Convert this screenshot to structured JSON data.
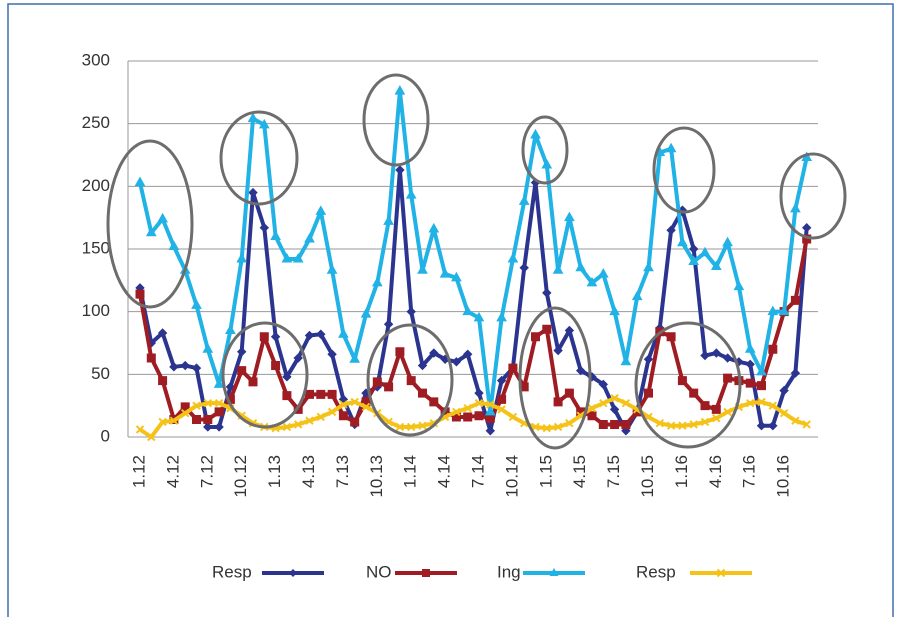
{
  "chart_data": {
    "type": "line",
    "categories": [
      "1.12",
      null,
      null,
      "4.12",
      null,
      null,
      "7.12",
      null,
      null,
      "10.12",
      null,
      null,
      "1.13",
      null,
      null,
      "4.13",
      null,
      null,
      "7.13",
      null,
      null,
      "10.13",
      null,
      null,
      "1.14",
      null,
      null,
      "4.14",
      null,
      null,
      "7.14",
      null,
      null,
      "10.14",
      null,
      null,
      "1.15",
      null,
      null,
      "4.15",
      null,
      null,
      "7.15",
      null,
      null,
      "10.15",
      null,
      null,
      "1.16",
      null,
      null,
      "4.16",
      null,
      null,
      "7.16",
      null,
      null,
      "10.16",
      null,
      null
    ],
    "series": [
      {
        "name": "Resp",
        "color": "#2b3590",
        "marker": "diamond",
        "values": [
          119,
          75,
          83,
          56,
          57,
          55,
          8,
          8,
          40,
          68,
          195,
          167,
          80,
          48,
          63,
          81,
          82,
          66,
          30,
          10,
          35,
          40,
          90,
          213,
          100,
          57,
          67,
          62,
          60,
          66,
          35,
          5,
          45,
          55,
          135,
          203,
          115,
          69,
          85,
          53,
          48,
          42,
          22,
          5,
          20,
          62,
          87,
          165,
          181,
          150,
          65,
          67,
          63,
          60,
          58,
          9,
          9,
          37,
          51,
          167
        ]
      },
      {
        "name": "NO",
        "color": "#9e1c22",
        "marker": "square",
        "values": [
          114,
          63,
          45,
          14,
          24,
          14,
          14,
          20,
          30,
          53,
          44,
          80,
          57,
          33,
          22,
          34,
          34,
          34,
          17,
          12,
          28,
          44,
          40,
          68,
          45,
          35,
          28,
          20,
          16,
          16,
          17,
          15,
          30,
          55,
          40,
          80,
          86,
          28,
          35,
          20,
          17,
          10,
          10,
          10,
          20,
          35,
          84,
          80,
          45,
          35,
          25,
          22,
          47,
          45,
          43,
          41,
          70,
          100,
          109,
          158
        ]
      },
      {
        "name": "Ing",
        "color": "#21b2e6",
        "marker": "triangle",
        "values": [
          203,
          163,
          174,
          152,
          133,
          105,
          70,
          42,
          85,
          142,
          254,
          249,
          160,
          142,
          142,
          158,
          180,
          133,
          82,
          62,
          98,
          123,
          172,
          276,
          193,
          133,
          166,
          130,
          127,
          100,
          95,
          20,
          95,
          142,
          188,
          241,
          217,
          133,
          175,
          135,
          123,
          130,
          100,
          60,
          112,
          135,
          227,
          230,
          155,
          140,
          147,
          136,
          155,
          120,
          70,
          52,
          100,
          100,
          182,
          223
        ]
      },
      {
        "name": "Resp",
        "color": "#f5c218",
        "marker": "cross",
        "values": [
          6,
          0,
          12,
          13,
          19,
          25,
          27,
          27,
          23,
          17,
          11,
          8,
          7,
          8,
          10,
          13,
          16,
          20,
          26,
          28,
          24,
          19,
          12,
          8,
          8,
          9,
          11,
          16,
          20,
          23,
          27,
          26,
          22,
          16,
          11,
          8,
          7,
          8,
          11,
          17,
          23,
          27,
          31,
          27,
          22,
          16,
          11,
          9,
          9,
          10,
          12,
          15,
          20,
          24,
          27,
          28,
          25,
          19,
          13,
          10
        ]
      }
    ],
    "ylim": [
      0,
      300
    ],
    "yticks": [
      0,
      50,
      100,
      150,
      200,
      250,
      300
    ],
    "grid": true
  }
}
